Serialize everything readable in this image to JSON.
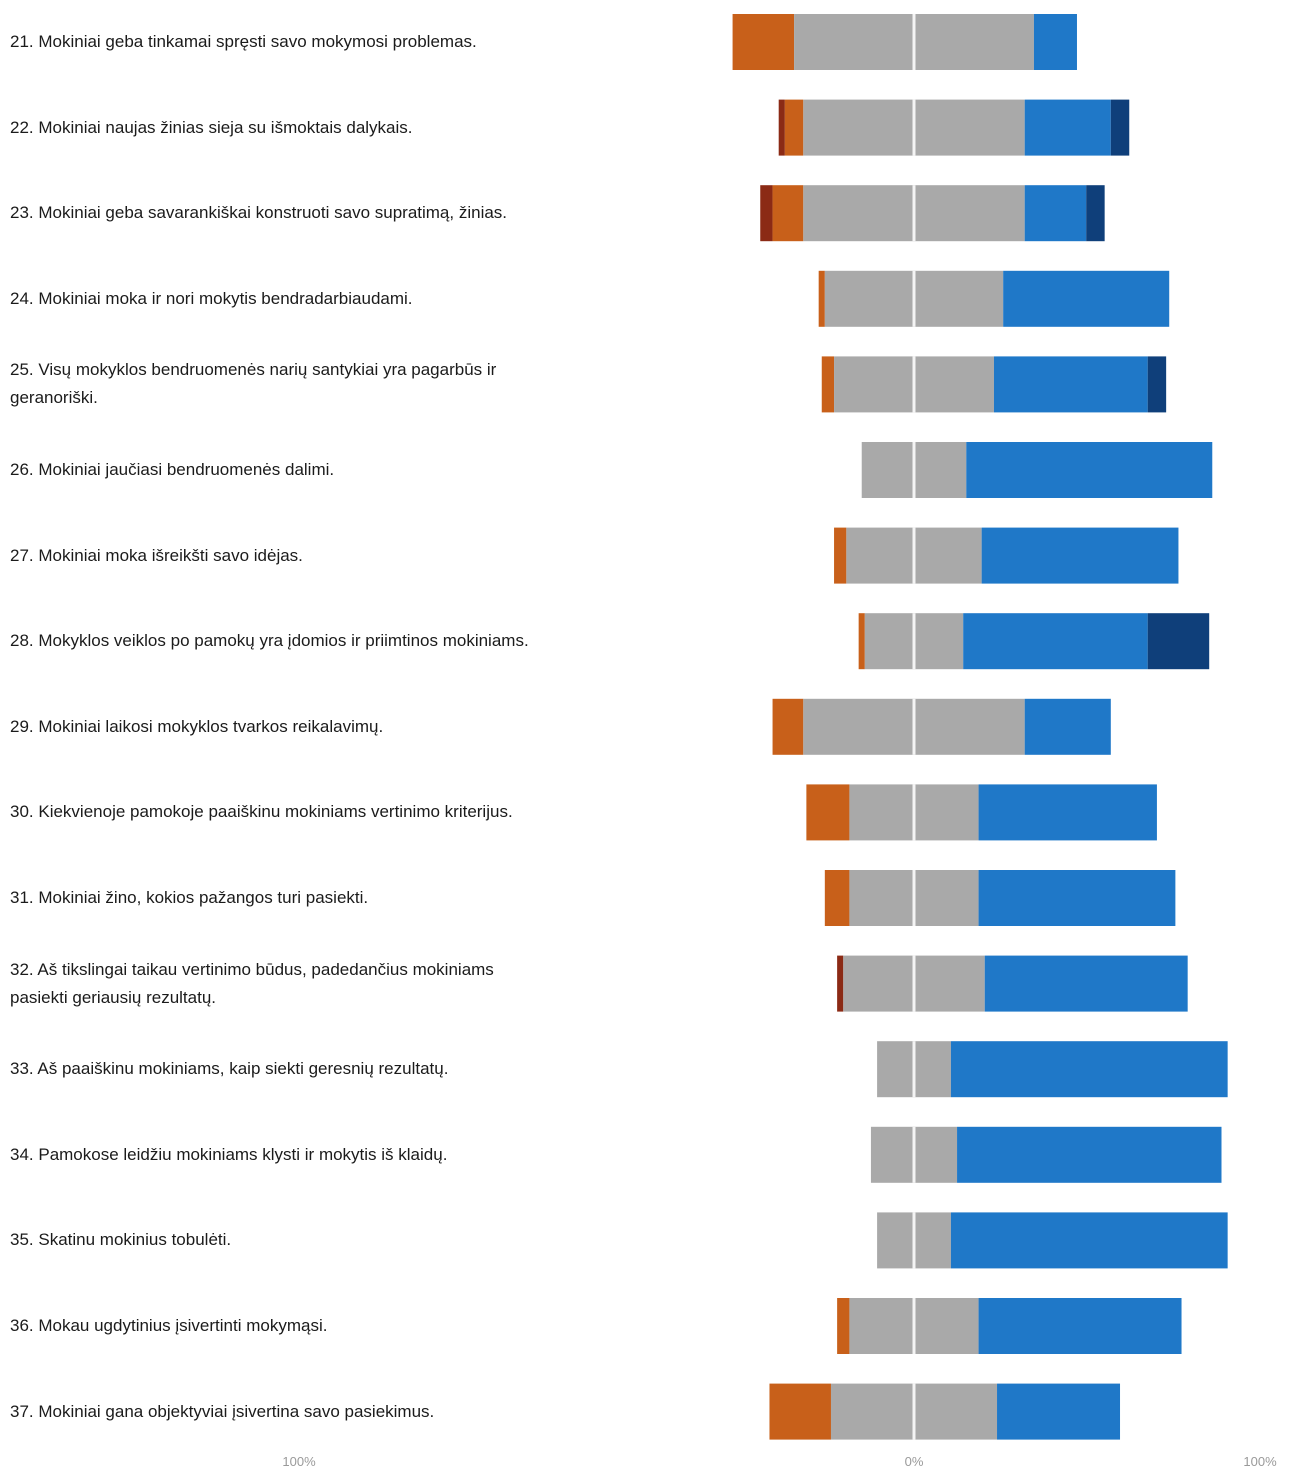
{
  "colors": {
    "strongly_disagree": "#8b2a15",
    "disagree": "#c8601a",
    "neutral": "#a9a9a9",
    "agree": "#1f78c8",
    "strongly_agree": "#0f3f7a",
    "center_line": "#f4f4f4"
  },
  "chart_data": {
    "type": "bar",
    "subtype": "diverging-stacked-horizontal",
    "xlim": [
      -100,
      100
    ],
    "tick_labels": [
      "100%",
      "0%",
      "100%"
    ],
    "segments": [
      "strongly_disagree",
      "disagree",
      "neutral",
      "agree",
      "strongly_agree"
    ],
    "rows": [
      {
        "label": "21. Mokiniai geba tinkamai spręsti savo mokymosi problemas.",
        "values": [
          0,
          10,
          39,
          7,
          0
        ]
      },
      {
        "label": "22. Mokiniai naujas žinias sieja su išmoktais dalykais.",
        "values": [
          1,
          3,
          36,
          14,
          3
        ]
      },
      {
        "label": "23. Mokiniai geba savarankiškai konstruoti savo supratimą, žinias.",
        "values": [
          2,
          5,
          36,
          10,
          3
        ]
      },
      {
        "label": "24. Mokiniai moka ir nori mokytis bendradarbiaudami.",
        "values": [
          0,
          1,
          29,
          27,
          0
        ]
      },
      {
        "label": "25. Visų mokyklos bendruomenės narių santykiai yra pagarbūs ir geranoriški.",
        "values": [
          0,
          2,
          26,
          25,
          3
        ]
      },
      {
        "label": "26. Mokiniai jaučiasi bendruomenės dalimi.",
        "values": [
          0,
          0,
          17,
          40,
          0
        ]
      },
      {
        "label": "27. Mokiniai moka išreikšti savo idėjas.",
        "values": [
          0,
          2,
          22,
          32,
          0
        ]
      },
      {
        "label": "28. Mokyklos veiklos po pamokų yra įdomios ir priimtinos mokiniams.",
        "values": [
          0,
          1,
          16,
          30,
          10
        ]
      },
      {
        "label": "29. Mokiniai laikosi mokyklos tvarkos reikalavimų.",
        "values": [
          0,
          5,
          36,
          14,
          0
        ]
      },
      {
        "label": "30. Kiekvienoje pamokoje paaiškinu mokiniams vertinimo kriterijus.",
        "values": [
          0,
          7,
          21,
          29,
          0
        ]
      },
      {
        "label": "31. Mokiniai žino, kokios pažangos turi pasiekti.",
        "values": [
          0,
          4,
          21,
          32,
          0
        ]
      },
      {
        "label": "32. Aš tikslingai taikau vertinimo būdus, padedančius mokiniams pasiekti geriausių rezultatų.",
        "values": [
          1,
          0,
          23,
          33,
          0
        ]
      },
      {
        "label": "33. Aš paaiškinu mokiniams, kaip siekti geresnių rezultatų.",
        "values": [
          0,
          0,
          12,
          45,
          0
        ]
      },
      {
        "label": "34. Pamokose leidžiu mokiniams klysti ir mokytis iš klaidų.",
        "values": [
          0,
          0,
          14,
          43,
          0
        ]
      },
      {
        "label": "35. Skatinu mokinius tobulėti.",
        "values": [
          0,
          0,
          12,
          45,
          0
        ]
      },
      {
        "label": "36. Mokau ugdytinius įsivertinti mokymąsi.",
        "values": [
          0,
          2,
          21,
          33,
          0
        ]
      },
      {
        "label": "37. Mokiniai gana objektyviai įsivertina savo pasiekimus.",
        "values": [
          0,
          10,
          27,
          20,
          0
        ]
      }
    ]
  }
}
